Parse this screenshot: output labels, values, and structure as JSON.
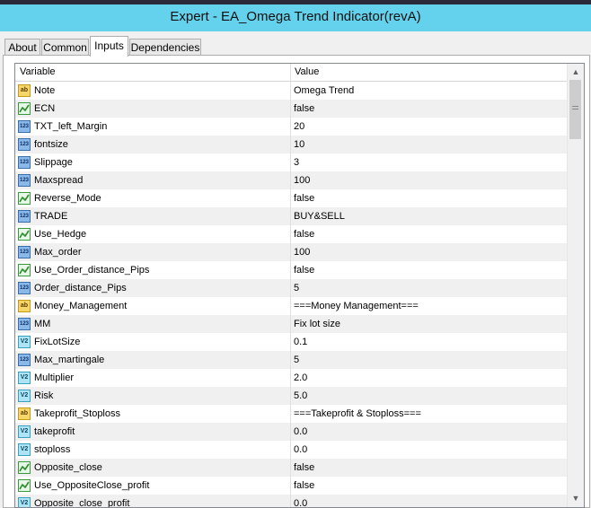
{
  "header": {
    "title": "Expert - EA_Omega Trend Indicator(revA)"
  },
  "tabs": [
    "About",
    "Common",
    "Inputs",
    "Dependencies"
  ],
  "table": {
    "columns": [
      "Variable",
      "Value"
    ],
    "rows": [
      {
        "icon": "ab",
        "variable": "Note",
        "value": "Omega Trend"
      },
      {
        "variable": "ECN",
        "value": "false"
      },
      {
        "icon": "123",
        "variable": "TXT_left_Margin",
        "value": "20"
      },
      {
        "icon": "123",
        "variable": "fontsize",
        "value": "10"
      },
      {
        "icon": "123",
        "variable": "Slippage",
        "value": "3"
      },
      {
        "icon": "123",
        "variable": "Maxspread",
        "value": "100"
      },
      {
        "variable": "Reverse_Mode",
        "value": "false"
      },
      {
        "icon": "123",
        "variable": "TRADE",
        "value": "BUY&SELL"
      },
      {
        "variable": "Use_Hedge",
        "value": "false"
      },
      {
        "icon": "123",
        "variable": "Max_order",
        "value": "100"
      },
      {
        "variable": "Use_Order_distance_Pips",
        "value": "false"
      },
      {
        "icon": "123",
        "variable": "Order_distance_Pips",
        "value": "5"
      },
      {
        "icon": "ab",
        "variable": "Money_Management",
        "value": "===Money Management==="
      },
      {
        "icon": "123",
        "variable": "MM",
        "value": "Fix lot size"
      },
      {
        "icon": "V2",
        "variable": "FixLotSize",
        "value": "0.1"
      },
      {
        "icon": "123",
        "variable": "Max_martingale",
        "value": "5"
      },
      {
        "icon": "V2",
        "variable": "Multiplier",
        "value": "2.0"
      },
      {
        "icon": "V2",
        "variable": "Risk",
        "value": "5.0"
      },
      {
        "icon": "ab",
        "variable": "Takeprofit_Stoploss",
        "value": "===Takeprofit & Stoploss==="
      },
      {
        "icon": "V2",
        "variable": "takeprofit",
        "value": "0.0"
      },
      {
        "icon": "V2",
        "variable": "stoploss",
        "value": "0.0"
      },
      {
        "variable": "Opposite_close",
        "value": "false"
      },
      {
        "variable": "Use_OppositeClose_profit",
        "value": "false"
      },
      {
        "icon": "V2",
        "variable": "Opposite_close_profit",
        "value": "0.0"
      }
    ]
  }
}
